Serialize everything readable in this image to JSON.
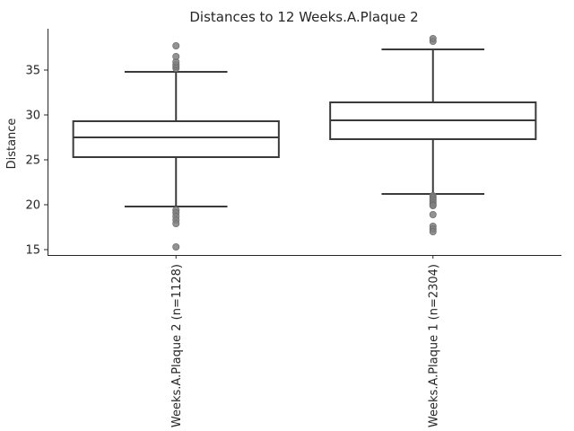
{
  "chart_data": {
    "type": "box",
    "title": "Distances to 12 Weeks.A.Plaque 2",
    "xlabel": "",
    "ylabel": "Distance",
    "ylim": [
      14.4,
      39.6
    ],
    "yticks": [
      15,
      20,
      25,
      30,
      35
    ],
    "grid": false,
    "colors": {
      "box_edge": "#3a3a3a",
      "box_fill": "#ffffff",
      "outlier": "#808080",
      "axis": "#262626"
    },
    "categories": [
      "12 Weeks.A.Plaque 2 (n=1128)",
      "12 Weeks.A.Plaque 1 (n=2304)"
    ],
    "boxes": [
      {
        "whisker_low": 19.8,
        "q1": 25.3,
        "median": 27.5,
        "q3": 29.3,
        "whisker_high": 34.8,
        "outliers": [
          19.4,
          19.1,
          18.7,
          18.3,
          17.9,
          15.3,
          35.2,
          35.4,
          35.6,
          35.9,
          36.5,
          37.7
        ]
      },
      {
        "whisker_low": 21.2,
        "q1": 27.3,
        "median": 29.4,
        "q3": 31.4,
        "whisker_high": 37.3,
        "outliers": [
          21.0,
          20.8,
          20.6,
          20.4,
          20.2,
          20.0,
          19.9,
          18.9,
          17.6,
          17.3,
          17.0,
          38.2,
          38.5
        ]
      }
    ]
  }
}
